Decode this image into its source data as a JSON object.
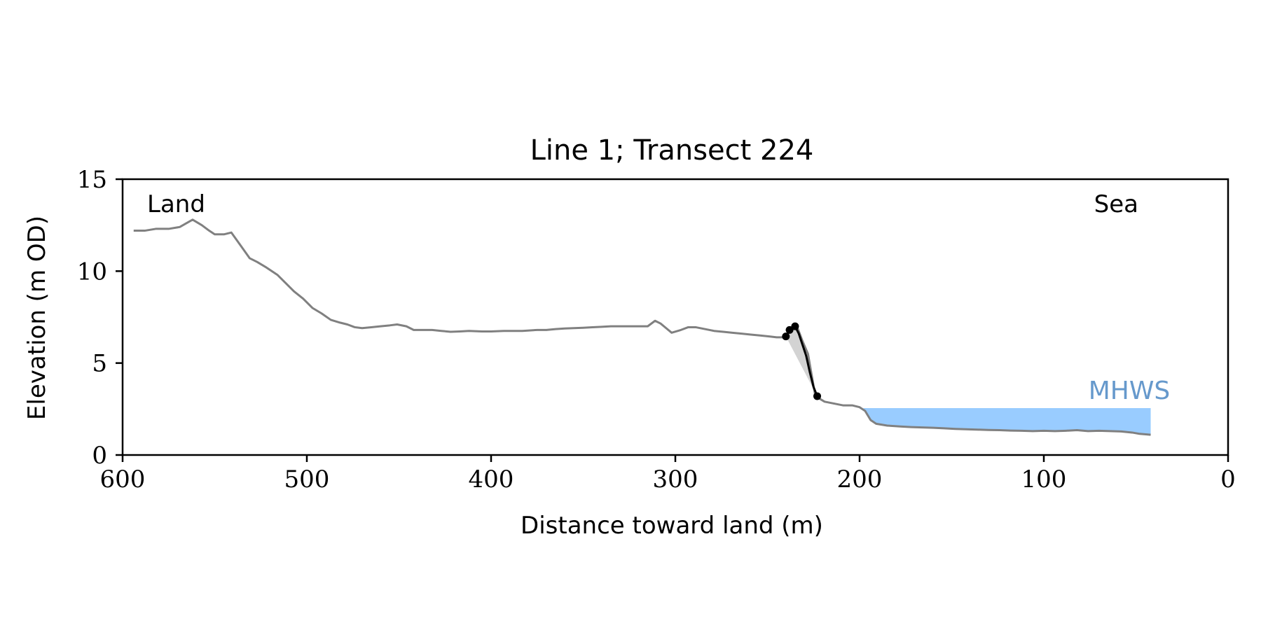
{
  "chart_data": {
    "type": "line",
    "title": "Line 1; Transect 224",
    "xlabel": "Distance toward land (m)",
    "ylabel": "Elevation (m OD)",
    "xlim": [
      600,
      0
    ],
    "ylim": [
      0,
      15
    ],
    "x_ticks": [
      600,
      500,
      400,
      300,
      200,
      100,
      0
    ],
    "y_ticks": [
      0,
      5,
      10,
      15
    ],
    "grid": false,
    "annotations": {
      "land": "Land",
      "sea": "Sea",
      "mhws": "MHWS"
    },
    "colors": {
      "profile": "#808080",
      "cliff": "#000000",
      "cliff_fill": "#d3d3d3",
      "mhws_fill": "#99ccff",
      "mhws_text": "#6699cc"
    },
    "profile": {
      "x": [
        594,
        588,
        582,
        575,
        569,
        562,
        557,
        553,
        550,
        545,
        541,
        536,
        531,
        527,
        522,
        516,
        512,
        507,
        502,
        497,
        492,
        487,
        482,
        478,
        474,
        470,
        465,
        460,
        455,
        451,
        446,
        442,
        437,
        432,
        427,
        422,
        417,
        412,
        405,
        400,
        393,
        388,
        383,
        375,
        370,
        365,
        360,
        355,
        350,
        345,
        340,
        335,
        330,
        325,
        320,
        315,
        311,
        308,
        305,
        302,
        297,
        293,
        289,
        284,
        279,
        274,
        269,
        264,
        259,
        254,
        249,
        245,
        242,
        240,
        237,
        234,
        231,
        228,
        224,
        219,
        214,
        209,
        204,
        200,
        197,
        194,
        191,
        185,
        178,
        172,
        166,
        160,
        154,
        148,
        142,
        136,
        130,
        124,
        118,
        112,
        106,
        100,
        94,
        88,
        82,
        76,
        70,
        64,
        58,
        52,
        48,
        44,
        42
      ],
      "y": [
        12.2,
        12.2,
        12.3,
        12.3,
        12.4,
        12.8,
        12.5,
        12.2,
        12.0,
        12.0,
        12.1,
        11.4,
        10.7,
        10.5,
        10.2,
        9.8,
        9.4,
        8.9,
        8.5,
        8.0,
        7.7,
        7.35,
        7.2,
        7.1,
        6.95,
        6.9,
        6.95,
        7.0,
        7.05,
        7.1,
        7.0,
        6.8,
        6.8,
        6.8,
        6.75,
        6.7,
        6.72,
        6.75,
        6.72,
        6.72,
        6.75,
        6.75,
        6.75,
        6.8,
        6.8,
        6.85,
        6.88,
        6.9,
        6.92,
        6.95,
        6.97,
        7.0,
        7.0,
        7.0,
        7.0,
        7.0,
        7.3,
        7.15,
        6.9,
        6.65,
        6.8,
        6.95,
        6.95,
        6.85,
        6.75,
        6.7,
        6.65,
        6.6,
        6.55,
        6.5,
        6.45,
        6.4,
        6.4,
        6.45,
        6.9,
        7.0,
        6.2,
        5.5,
        3.2,
        2.9,
        2.8,
        2.7,
        2.7,
        2.6,
        2.4,
        1.9,
        1.7,
        1.6,
        1.55,
        1.52,
        1.5,
        1.48,
        1.45,
        1.42,
        1.4,
        1.38,
        1.36,
        1.35,
        1.33,
        1.32,
        1.3,
        1.32,
        1.3,
        1.32,
        1.35,
        1.3,
        1.32,
        1.3,
        1.28,
        1.22,
        1.15,
        1.12,
        1.1
      ]
    },
    "cliff_line": {
      "x": [
        240,
        238,
        235,
        233,
        231,
        229,
        227,
        225,
        223
      ],
      "y": [
        6.45,
        6.8,
        7.0,
        6.6,
        6.0,
        5.4,
        4.5,
        3.7,
        3.2
      ]
    },
    "cliff_points": {
      "x": [
        240,
        238,
        235,
        223
      ],
      "y": [
        6.45,
        6.8,
        7.0,
        3.2
      ]
    },
    "mhws_band": {
      "x_start": 198,
      "x_end": 42,
      "level": 2.55
    }
  }
}
